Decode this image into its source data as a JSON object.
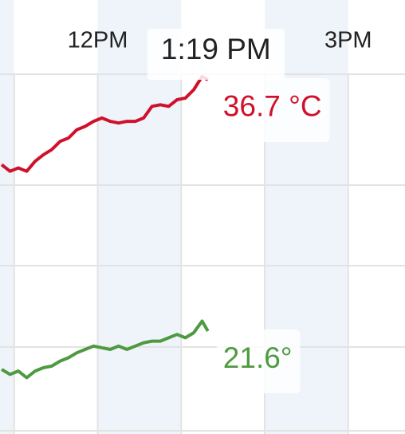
{
  "chart_data": {
    "type": "line",
    "x": [
      10.85,
      10.95,
      11.05,
      11.15,
      11.25,
      11.35,
      11.45,
      11.55,
      11.65,
      11.75,
      11.85,
      11.95,
      12.05,
      12.15,
      12.25,
      12.35,
      12.45,
      12.55,
      12.65,
      12.75,
      12.85,
      12.95,
      13.05,
      13.15,
      13.25,
      13.32
    ],
    "series": [
      {
        "color": "#d0112b",
        "values": [
          31.6,
          31.2,
          31.4,
          31.2,
          31.8,
          32.2,
          32.5,
          33.0,
          33.2,
          33.7,
          33.9,
          34.2,
          34.4,
          34.2,
          34.1,
          34.2,
          34.2,
          34.4,
          35.1,
          35.2,
          35.1,
          35.5,
          35.6,
          36.1,
          36.9,
          36.7
        ]
      },
      {
        "color": "#4e9a40",
        "values": [
          19.3,
          19.0,
          19.2,
          18.8,
          19.2,
          19.4,
          19.5,
          19.8,
          20.0,
          20.3,
          20.5,
          20.7,
          20.6,
          20.5,
          20.7,
          20.5,
          20.7,
          20.9,
          21.0,
          21.0,
          21.2,
          21.4,
          21.2,
          21.5,
          22.2,
          21.6
        ]
      }
    ],
    "xlim": [
      10.83,
      15.68
    ],
    "ylim": [
      15.42,
      41.49
    ],
    "xticks": [
      {
        "value": 11,
        "label": null
      },
      {
        "value": 12,
        "label": "12PM"
      },
      {
        "value": 13,
        "label": null
      },
      {
        "value": 14,
        "label": null
      },
      {
        "value": 15,
        "label": "3PM"
      }
    ],
    "tooltip": {
      "label": "1:19 PM",
      "values": [
        "36.7 °C",
        "21.6°"
      ]
    }
  }
}
